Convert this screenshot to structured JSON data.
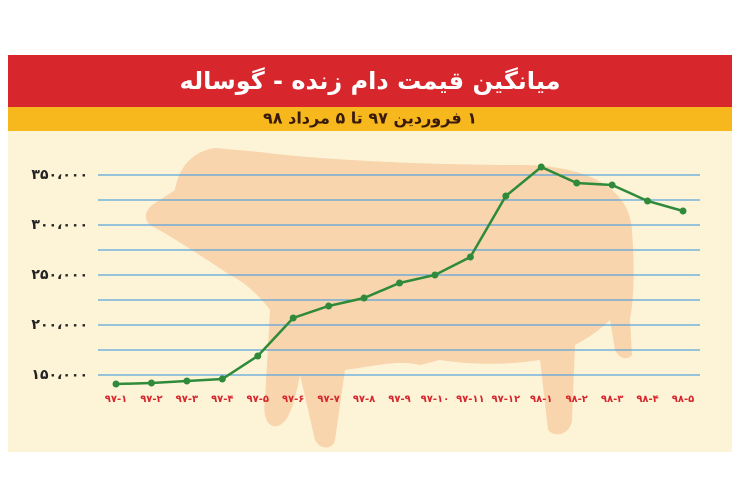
{
  "chart_data": {
    "type": "line",
    "title": "میانگین قیمت دام زنده - گوساله",
    "subtitle": "۱ فروردین ۹۷ تا ۵ مرداد ۹۸",
    "categories": [
      "۹۷-۱",
      "۹۷-۲",
      "۹۷-۳",
      "۹۷-۴",
      "۹۷-۵",
      "۹۷-۶",
      "۹۷-۷",
      "۹۷-۸",
      "۹۷-۹",
      "۹۷-۱۰",
      "۹۷-۱۱",
      "۹۷-۱۲",
      "۹۸-۱",
      "۹۸-۲",
      "۹۸-۳",
      "۹۸-۴",
      "۹۸-۵"
    ],
    "values": [
      141000,
      142000,
      144000,
      146000,
      169000,
      207000,
      219000,
      227000,
      242000,
      250000,
      268000,
      329000,
      358000,
      342000,
      340000,
      324000,
      314000
    ],
    "color": "#2f8a3a",
    "ylim": [
      130000,
      365000
    ],
    "yticks": [
      {
        "value": 150000,
        "label": "۱۵۰،۰۰۰"
      },
      {
        "value": 200000,
        "label": "۲۰۰،۰۰۰"
      },
      {
        "value": 250000,
        "label": "۲۵۰،۰۰۰"
      },
      {
        "value": 300000,
        "label": "۳۰۰،۰۰۰"
      },
      {
        "value": 350000,
        "label": "۳۵۰،۰۰۰"
      }
    ],
    "minor_yticks": [
      175000,
      225000,
      275000,
      325000
    ],
    "grid": true
  }
}
